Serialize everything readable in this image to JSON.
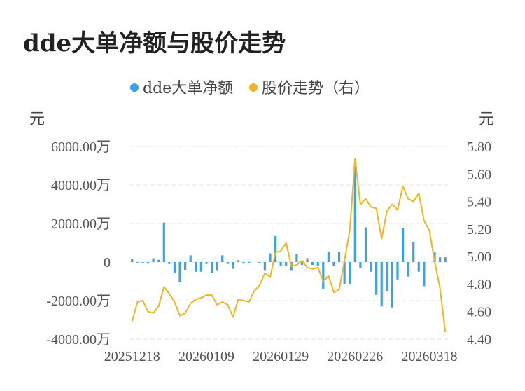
{
  "title": "dde大单净额与股价走势",
  "chart_data": {
    "type": "bar+line",
    "legend": [
      {
        "label": "dde大单净额",
        "color": "#3fa0e8"
      },
      {
        "label": "股价走势（右）",
        "color": "#f2b422"
      }
    ],
    "left_unit": "元",
    "right_unit": "元",
    "left_axis": {
      "min": -4000,
      "max": 6000,
      "ticks": [
        {
          "value": 6000,
          "label": "6000.00万"
        },
        {
          "value": 4000,
          "label": "4000.00万"
        },
        {
          "value": 2000,
          "label": "2000.00万"
        },
        {
          "value": 0,
          "label": "0"
        },
        {
          "value": -2000,
          "label": "-2000.00万"
        },
        {
          "value": -4000,
          "label": "-4000.00万"
        }
      ]
    },
    "right_axis": {
      "min": 4.4,
      "max": 5.8,
      "ticks": [
        {
          "value": 5.8,
          "label": "5.80"
        },
        {
          "value": 5.6,
          "label": "5.60"
        },
        {
          "value": 5.4,
          "label": "5.40"
        },
        {
          "value": 5.2,
          "label": "5.20"
        },
        {
          "value": 5.0,
          "label": "5.00"
        },
        {
          "value": 4.8,
          "label": "4.80"
        },
        {
          "value": 4.6,
          "label": "4.60"
        },
        {
          "value": 4.4,
          "label": "4.40"
        }
      ]
    },
    "x_ticks": [
      {
        "index": 0,
        "label": "20251218"
      },
      {
        "index": 14,
        "label": "20260109"
      },
      {
        "index": 28,
        "label": "20260129"
      },
      {
        "index": 42,
        "label": "20260226"
      },
      {
        "index": 56,
        "label": "20260318"
      }
    ],
    "bars": [
      150,
      -30,
      -60,
      -80,
      200,
      120,
      2050,
      -100,
      -550,
      -1050,
      -400,
      350,
      -500,
      -500,
      -100,
      -550,
      -450,
      350,
      -100,
      -350,
      100,
      -80,
      -60,
      0,
      -60,
      -450,
      450,
      1350,
      -200,
      -200,
      -450,
      400,
      -150,
      200,
      -150,
      -200,
      -1400,
      550,
      -200,
      550,
      -1150,
      -1150,
      5000,
      -300,
      1800,
      -500,
      -1700,
      -2300,
      -1500,
      -2350,
      -900,
      1750,
      -750,
      1050,
      -500,
      -1250,
      0,
      500,
      250,
      250
    ],
    "prices": [
      4.53,
      4.67,
      4.68,
      4.6,
      4.59,
      4.64,
      4.78,
      4.73,
      4.67,
      4.57,
      4.59,
      4.66,
      4.69,
      4.7,
      4.72,
      4.72,
      4.65,
      4.67,
      4.65,
      4.56,
      4.69,
      4.68,
      4.67,
      4.75,
      4.79,
      4.88,
      4.85,
      5.03,
      5.04,
      5.1,
      4.93,
      4.94,
      4.97,
      4.92,
      4.91,
      4.92,
      4.82,
      4.86,
      4.74,
      4.76,
      4.97,
      5.19,
      5.71,
      5.38,
      5.42,
      5.36,
      5.35,
      5.13,
      5.33,
      5.38,
      5.34,
      5.51,
      5.42,
      5.4,
      5.46,
      5.26,
      5.19,
      4.96,
      4.77,
      4.45
    ]
  }
}
